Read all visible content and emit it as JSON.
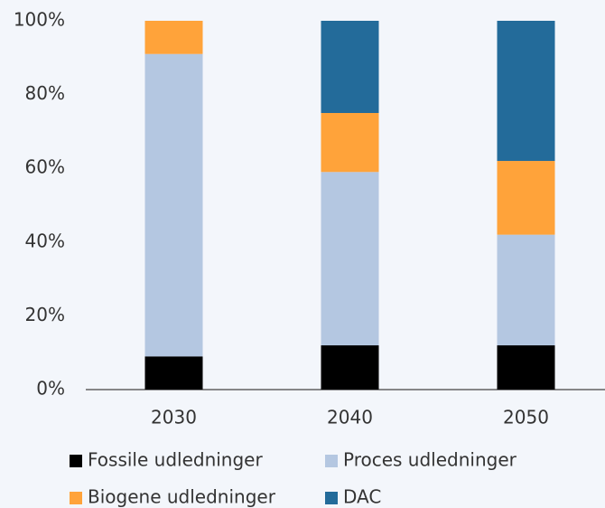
{
  "chart_data": {
    "type": "stacked_bar",
    "categories": [
      "2030",
      "2040",
      "2050"
    ],
    "series": [
      {
        "name": "Fossile udledninger",
        "color": "#000000",
        "values": [
          9,
          12,
          12
        ]
      },
      {
        "name": "Proces udledninger",
        "color": "#b4c7e1",
        "values": [
          82,
          47,
          30
        ]
      },
      {
        "name": "Biogene udledninger",
        "color": "#ffa33a",
        "values": [
          9,
          16,
          20
        ]
      },
      {
        "name": "DAC",
        "color": "#236b9a",
        "values": [
          0,
          25,
          38
        ]
      }
    ],
    "ylim": [
      0,
      100
    ],
    "yticks": [
      {
        "value": 0,
        "label": "0%"
      },
      {
        "value": 20,
        "label": "20%"
      },
      {
        "value": 40,
        "label": "40%"
      },
      {
        "value": 60,
        "label": "60%"
      },
      {
        "value": 80,
        "label": "80%"
      },
      {
        "value": 100,
        "label": "100%"
      }
    ]
  }
}
